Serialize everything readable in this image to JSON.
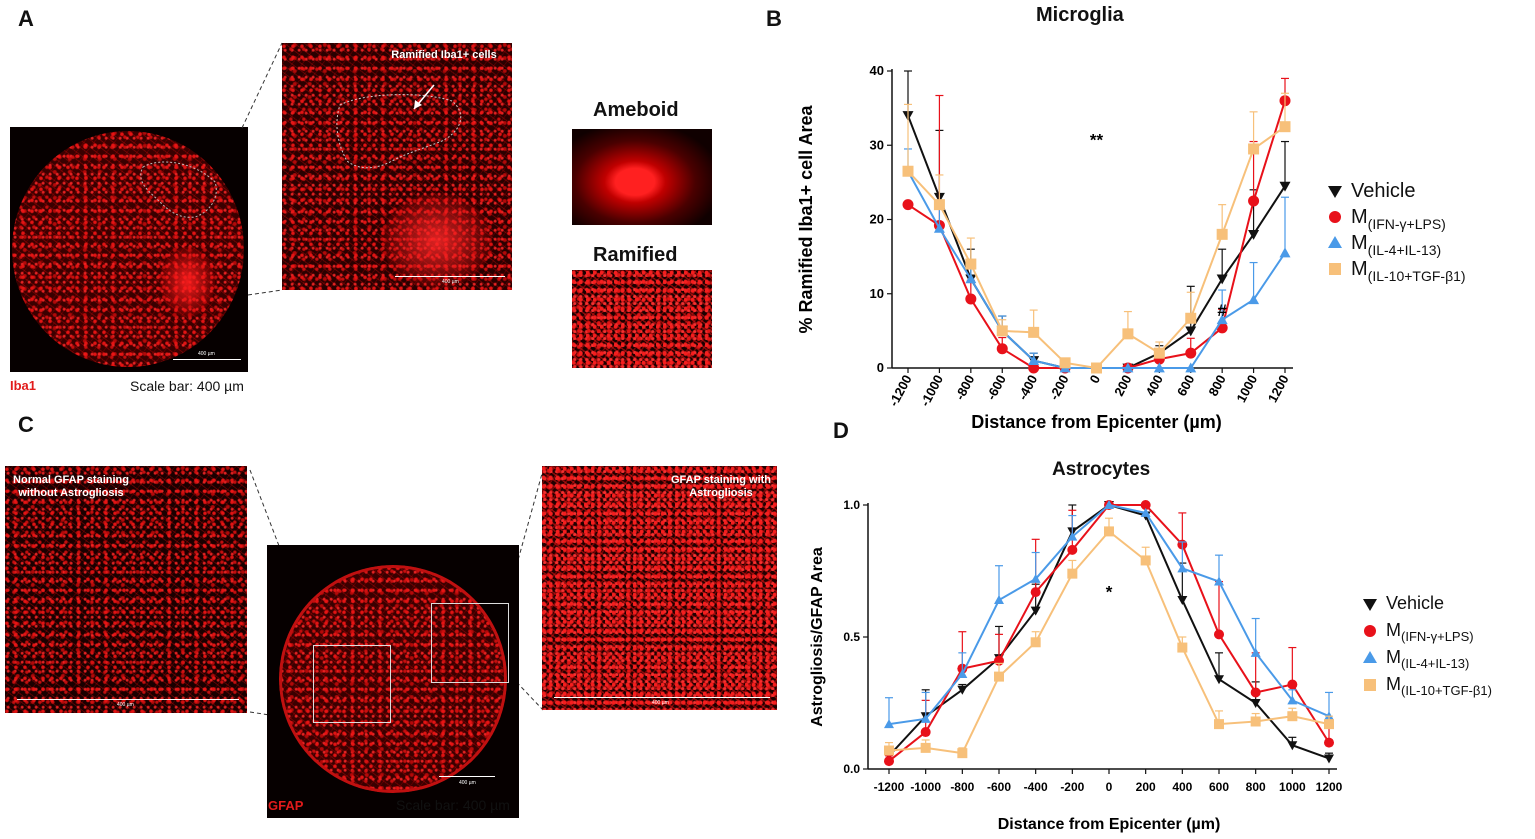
{
  "panels": {
    "a": {
      "letter": "A",
      "stain_label": "Iba1",
      "scale_caption": "Scale bar: 400 µm",
      "inset_callout": "Ramified Iba1+ cells",
      "ameboid_label": "Ameboid",
      "ramified_label": "Ramified",
      "scale_text": "400 µm"
    },
    "b": {
      "letter": "B"
    },
    "c": {
      "letter": "C",
      "stain_label": "GFAP",
      "scale_caption": "Scale bar: 400 µm",
      "left_callout": "Normal GFAP staining without Astrogliosis",
      "right_callout": "GFAP staining with Astrogliosis",
      "scale_text": "400 µm"
    },
    "d": {
      "letter": "D"
    }
  },
  "colors": {
    "vehicle": "#111111",
    "ifn": "#e8111a",
    "il4": "#4a9ae8",
    "il10": "#f7c07a",
    "image_bg": "#060000",
    "stain_red": "#e21b1b"
  },
  "legend_icons": [
    "triangle-down-icon",
    "circle-icon",
    "triangle-up-icon",
    "square-icon"
  ],
  "chart_data": [
    {
      "id": "microglia",
      "type": "line",
      "title": "Microglia",
      "xlabel": "Distance from Epicenter (µm)",
      "ylabel": "% Ramified Iba1+ cell Area",
      "x": [
        -1200,
        -1000,
        -800,
        -600,
        -400,
        -200,
        0,
        200,
        400,
        600,
        800,
        1000,
        1200
      ],
      "x_tick_labels": [
        "-1200",
        "-1000",
        "-800",
        "-600",
        "-400",
        "-200",
        "0",
        "200",
        "400",
        "600",
        "800",
        "1000",
        "1200"
      ],
      "ylim": [
        0,
        40
      ],
      "y_ticks": [
        0,
        10,
        20,
        30,
        40
      ],
      "y_tick_labels": [
        "0",
        "10",
        "20",
        "30",
        "40"
      ],
      "annotations": [
        {
          "text": "**",
          "x": 0,
          "y": 30
        },
        {
          "text": "#",
          "x": 800,
          "y": 7
        }
      ],
      "series": [
        {
          "name": "Vehicle",
          "name_main": "Vehicle",
          "name_sub": "",
          "marker": "triangle-down",
          "color": "#111111",
          "values": [
            34,
            23,
            12,
            5,
            1,
            0,
            0,
            0,
            2,
            5,
            12,
            18,
            24.5
          ],
          "errors": [
            6,
            9,
            4,
            2,
            1,
            0.5,
            0,
            0.5,
            1,
            6,
            4,
            6,
            6
          ]
        },
        {
          "name": "M(IFN-γ+LPS)",
          "name_main": "M",
          "name_sub": "(IFN-γ+LPS)",
          "marker": "circle",
          "color": "#e8111a",
          "values": [
            22,
            19.2,
            9.3,
            2.6,
            0,
            0,
            0,
            0,
            1.2,
            2,
            5.4,
            22.5,
            36
          ],
          "errors": [
            0,
            17.5,
            2.5,
            1.5,
            0,
            0,
            0,
            0,
            1,
            2,
            2.5,
            8,
            3
          ]
        },
        {
          "name": "M(IL-4+IL-13)",
          "name_main": "M",
          "name_sub": "(IL-4+IL-13)",
          "marker": "triangle-up",
          "color": "#4a9ae8",
          "values": [
            26.5,
            18.8,
            12,
            5,
            1,
            0,
            0,
            0,
            0,
            0,
            6.5,
            9.2,
            15.5
          ],
          "errors": [
            3,
            3,
            2,
            2,
            1,
            0,
            0,
            0,
            0,
            0,
            4,
            5,
            7.5
          ]
        },
        {
          "name": "M(IL-10+TGF-β1)",
          "name_main": "M",
          "name_sub": "(IL-10+TGF-β1)",
          "marker": "square",
          "color": "#f7c07a",
          "values": [
            26.5,
            22,
            14,
            5,
            4.8,
            0.7,
            0,
            4.6,
            2,
            6.7,
            18,
            29.5,
            32.5
          ],
          "errors": [
            9,
            4,
            3.5,
            1.5,
            3,
            0.5,
            0,
            3,
            1.5,
            3.5,
            4,
            5,
            4.5
          ]
        }
      ]
    },
    {
      "id": "astrocytes",
      "type": "line",
      "title": "Astrocytes",
      "xlabel": "Distance from Epicenter (µm)",
      "ylabel": "Astrogliosis/GFAP Area",
      "x": [
        -1200,
        -1000,
        -800,
        -600,
        -400,
        -200,
        0,
        200,
        400,
        600,
        800,
        1000,
        1200
      ],
      "x_tick_labels": [
        "-1200",
        "-1000",
        "-800",
        "-600",
        "-400",
        "-200",
        "0",
        "200",
        "400",
        "600",
        "800",
        "1000",
        "1200"
      ],
      "ylim": [
        0,
        1
      ],
      "y_ticks": [
        0,
        0.5,
        1
      ],
      "y_tick_labels": [
        "0.0",
        "0.5",
        "1.0"
      ],
      "annotations": [
        {
          "text": "*",
          "x": 0,
          "y": 0.65
        }
      ],
      "series": [
        {
          "name": "Vehicle",
          "name_main": "Vehicle",
          "name_sub": "",
          "marker": "triangle-down",
          "color": "#111111",
          "values": [
            0.05,
            0.2,
            0.3,
            0.42,
            0.6,
            0.9,
            1.0,
            0.96,
            0.64,
            0.34,
            0.25,
            0.09,
            0.04
          ],
          "errors": [
            0.03,
            0.1,
            0.02,
            0.12,
            0.1,
            0.1,
            0,
            0,
            0.14,
            0.1,
            0.08,
            0.03,
            0.02
          ]
        },
        {
          "name": "M(IFN-γ+LPS)",
          "name_main": "M",
          "name_sub": "(IFN-γ+LPS)",
          "marker": "circle",
          "color": "#e8111a",
          "values": [
            0.03,
            0.14,
            0.38,
            0.41,
            0.67,
            0.83,
            1.0,
            1.0,
            0.85,
            0.51,
            0.29,
            0.32,
            0.1
          ],
          "errors": [
            0.02,
            0.12,
            0.14,
            0.1,
            0.2,
            0.15,
            0,
            0,
            0.12,
            0.2,
            0.15,
            0.14,
            0.06
          ]
        },
        {
          "name": "M(IL-4+IL-13)",
          "name_main": "M",
          "name_sub": "(IL-4+IL-13)",
          "marker": "triangle-up",
          "color": "#4a9ae8",
          "values": [
            0.17,
            0.19,
            0.36,
            0.64,
            0.72,
            0.88,
            1.0,
            0.97,
            0.76,
            0.71,
            0.44,
            0.26,
            0.2
          ],
          "errors": [
            0.1,
            0.1,
            0.08,
            0.13,
            0.1,
            0.08,
            0,
            0,
            0.1,
            0.1,
            0.13,
            0.04,
            0.09
          ]
        },
        {
          "name": "M(IL-10+TGF-β1)",
          "name_main": "M",
          "name_sub": "(IL-10+TGF-β1)",
          "marker": "square",
          "color": "#f7c07a",
          "values": [
            0.07,
            0.08,
            0.06,
            0.35,
            0.48,
            0.74,
            0.9,
            0.79,
            0.46,
            0.17,
            0.18,
            0.2,
            0.17
          ],
          "errors": [
            0.03,
            0.03,
            0.02,
            0.05,
            0.04,
            0.05,
            0.05,
            0.05,
            0.04,
            0.05,
            0.03,
            0.03,
            0.03
          ]
        }
      ]
    }
  ]
}
